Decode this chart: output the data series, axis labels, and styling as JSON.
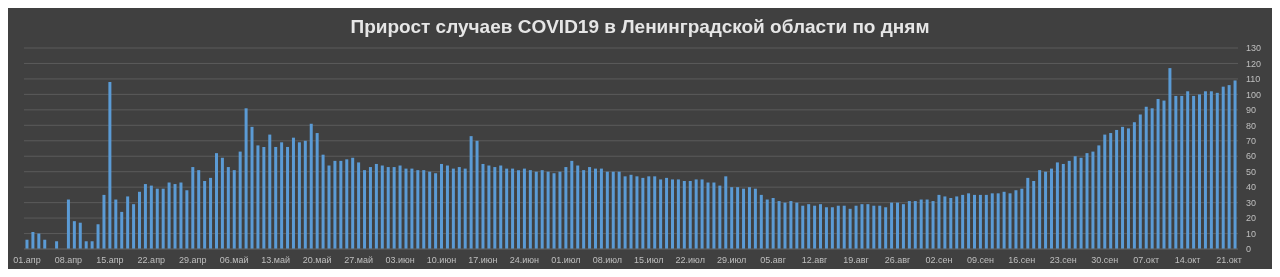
{
  "chart_data": {
    "type": "bar",
    "title": "Прирост случаев COVID19 в Ленинградской области по дням",
    "categories": [
      "01.апр",
      null,
      null,
      null,
      null,
      null,
      null,
      "08.апр",
      null,
      null,
      null,
      null,
      null,
      null,
      "15.апр",
      null,
      null,
      null,
      null,
      null,
      null,
      "22.апр",
      null,
      null,
      null,
      null,
      null,
      null,
      "29.апр",
      null,
      null,
      null,
      null,
      null,
      null,
      "06.май",
      null,
      null,
      null,
      null,
      null,
      null,
      "13.май",
      null,
      null,
      null,
      null,
      null,
      null,
      "20.май",
      null,
      null,
      null,
      null,
      null,
      null,
      "27.май",
      null,
      null,
      null,
      null,
      null,
      null,
      "03.июн",
      null,
      null,
      null,
      null,
      null,
      null,
      "10.июн",
      null,
      null,
      null,
      null,
      null,
      null,
      "17.июн",
      null,
      null,
      null,
      null,
      null,
      null,
      "24.июн",
      null,
      null,
      null,
      null,
      null,
      null,
      "01.июл",
      null,
      null,
      null,
      null,
      null,
      null,
      "08.июл",
      null,
      null,
      null,
      null,
      null,
      null,
      "15.июл",
      null,
      null,
      null,
      null,
      null,
      null,
      "22.июл",
      null,
      null,
      null,
      null,
      null,
      null,
      "29.июл",
      null,
      null,
      null,
      null,
      null,
      null,
      "05.авг",
      null,
      null,
      null,
      null,
      null,
      null,
      "12.авг",
      null,
      null,
      null,
      null,
      null,
      null,
      "19.авг",
      null,
      null,
      null,
      null,
      null,
      null,
      "26.авг",
      null,
      null,
      null,
      null,
      null,
      null,
      "02.сен",
      null,
      null,
      null,
      null,
      null,
      null,
      "09.сен",
      null,
      null,
      null,
      null,
      null,
      null,
      "16.сен",
      null,
      null,
      null,
      null,
      null,
      null,
      "23.сен",
      null,
      null,
      null,
      null,
      null,
      null,
      "30.сен",
      null,
      null,
      null,
      null,
      null,
      null,
      "07.окт",
      null,
      null,
      null,
      null,
      null,
      null,
      "14.окт",
      null,
      null,
      null,
      null,
      null,
      null,
      "21.окт",
      null
    ],
    "values": [
      6,
      11,
      10,
      6,
      0,
      5,
      0,
      32,
      18,
      17,
      5,
      5,
      16,
      35,
      108,
      32,
      24,
      34,
      29,
      37,
      42,
      41,
      39,
      39,
      43,
      42,
      43,
      38,
      53,
      51,
      44,
      46,
      62,
      59,
      53,
      51,
      63,
      91,
      79,
      67,
      66,
      74,
      66,
      69,
      66,
      72,
      69,
      70,
      81,
      75,
      61,
      54,
      57,
      57,
      58,
      59,
      56,
      51,
      53,
      55,
      54,
      53,
      53,
      54,
      52,
      52,
      51,
      51,
      50,
      49,
      55,
      54,
      52,
      53,
      52,
      73,
      70,
      55,
      54,
      53,
      54,
      52,
      52,
      51,
      52,
      51,
      50,
      51,
      50,
      49,
      50,
      53,
      57,
      54,
      51,
      53,
      52,
      52,
      50,
      50,
      50,
      47,
      48,
      47,
      46,
      47,
      47,
      45,
      46,
      45,
      45,
      44,
      44,
      45,
      45,
      43,
      43,
      41,
      47,
      40,
      40,
      39,
      40,
      39,
      35,
      32,
      33,
      31,
      30,
      31,
      30,
      28,
      29,
      28,
      29,
      27,
      27,
      28,
      28,
      26,
      28,
      29,
      29,
      28,
      28,
      27,
      30,
      30,
      29,
      31,
      31,
      32,
      32,
      31,
      35,
      34,
      33,
      34,
      35,
      36,
      35,
      35,
      35,
      36,
      36,
      37,
      36,
      38,
      39,
      46,
      44,
      51,
      50,
      52,
      56,
      55,
      57,
      60,
      59,
      62,
      63,
      67,
      74,
      75,
      77,
      79,
      78,
      82,
      87,
      92,
      91,
      97,
      96,
      117,
      99,
      99,
      102,
      99,
      100,
      102,
      102,
      101,
      105,
      106,
      109
    ],
    "color": "#5b9bd5",
    "ylim": [
      0,
      130
    ],
    "yticks": [
      0,
      10,
      20,
      30,
      40,
      50,
      60,
      70,
      80,
      90,
      100,
      110,
      120,
      130
    ],
    "grid": "y"
  }
}
